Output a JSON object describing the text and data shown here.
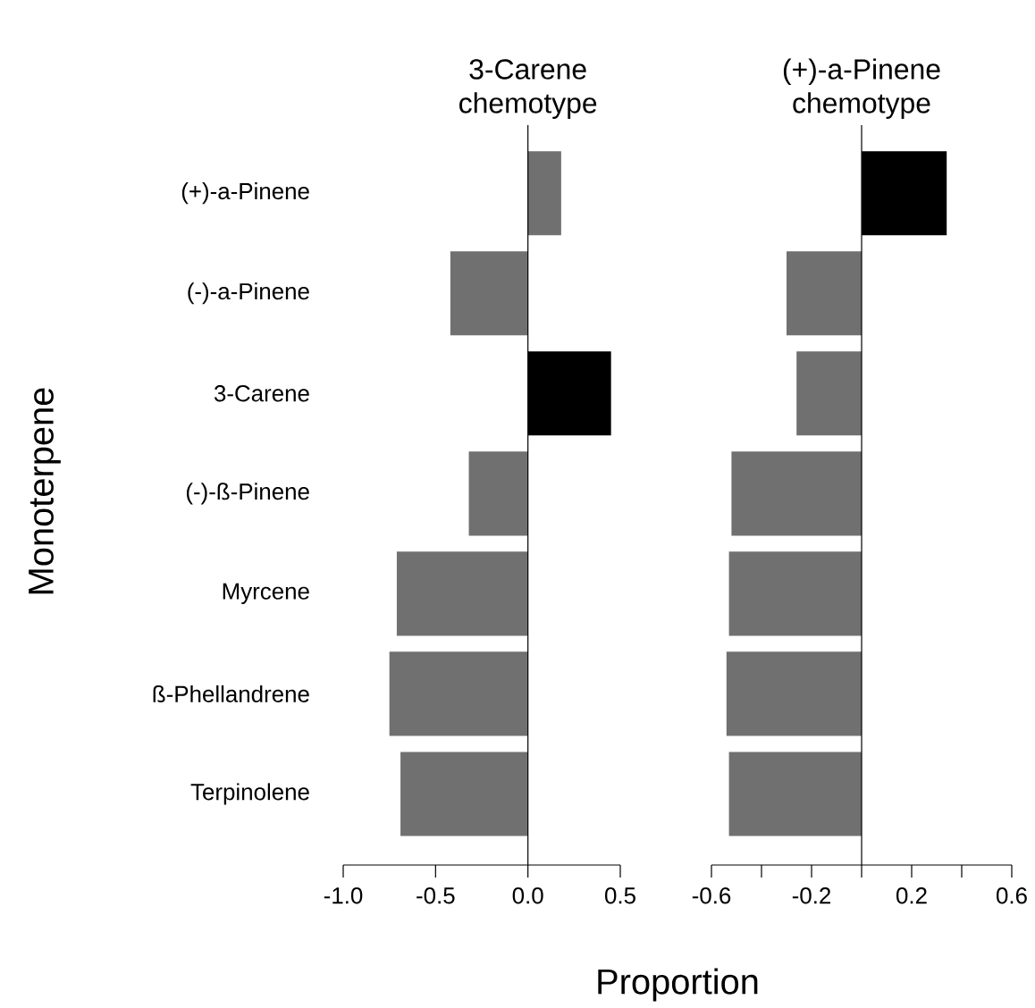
{
  "chart_data": [
    {
      "type": "bar",
      "orientation": "horizontal",
      "title": "3-Carene chemotype",
      "ylabel": "Monoterpene",
      "xlabel": "Proportion",
      "categories": [
        "(+)-a-Pinene",
        "(-)-a-Pinene",
        "3-Carene",
        "(-)-ß-Pinene",
        "Myrcene",
        "ß-Phellandrene",
        "Terpinolene"
      ],
      "values": [
        0.18,
        -0.42,
        0.45,
        -0.32,
        -0.71,
        -0.75,
        -0.69
      ],
      "colors": [
        "#707070",
        "#707070",
        "#000000",
        "#707070",
        "#707070",
        "#707070",
        "#707070"
      ],
      "xlim": [
        -1.0,
        0.5
      ],
      "xticks": [
        {
          "value": -1.0,
          "label": "-1.0"
        },
        {
          "value": -0.5,
          "label": "-0.5"
        },
        {
          "value": 0.0,
          "label": "0.0"
        },
        {
          "value": 0.5,
          "label": "0.5"
        }
      ],
      "ref_lines": [
        {
          "axis": "x",
          "value": 0,
          "color": "#000000"
        }
      ]
    },
    {
      "type": "bar",
      "orientation": "horizontal",
      "title": "(+)-a-Pinene chemotype",
      "categories": [
        null,
        null,
        null,
        null,
        null,
        null,
        null
      ],
      "values": [
        0.34,
        -0.3,
        -0.26,
        -0.52,
        -0.53,
        -0.54,
        -0.53
      ],
      "colors": [
        "#000000",
        "#707070",
        "#707070",
        "#707070",
        "#707070",
        "#707070",
        "#707070"
      ],
      "xlim": [
        -0.6,
        0.6
      ],
      "xticks": [
        -0.6,
        {
          "value": -0.4,
          "label": null
        },
        -0.2,
        {
          "value": 0,
          "label": null
        },
        0.2,
        {
          "value": 0.4,
          "label": null
        },
        0.6
      ],
      "ref_lines": [
        {
          "axis": "x",
          "value": 0,
          "color": "#000000"
        }
      ]
    }
  ]
}
